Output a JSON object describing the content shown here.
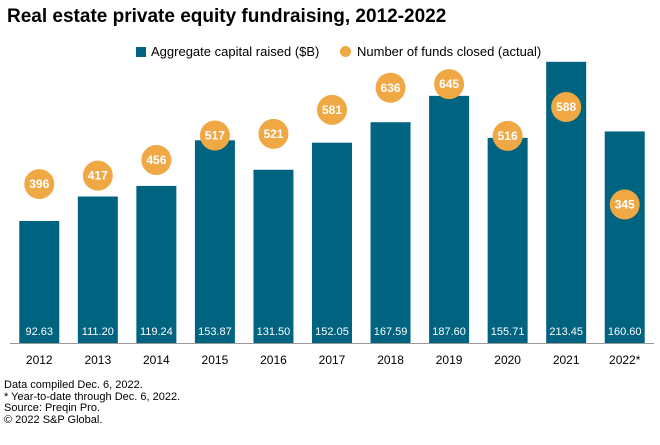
{
  "colors": {
    "bar": "#00637F",
    "dot": "#F0A845",
    "axis": "#999999",
    "bar_label": "#ffffff",
    "dot_label": "#ffffff"
  },
  "legend": {
    "bars_label": "Aggregate capital raised ($B)",
    "dots_label": "Number of funds closed (actual)"
  },
  "notes": [
    "Data compiled Dec. 6, 2022.",
    "* Year-to-date through Dec. 6, 2022.",
    "Source: Preqin Pro.",
    "© 2022 S&P Global."
  ],
  "chart_data": {
    "type": "bar",
    "title": "Real estate private equity fundraising, 2012-2022",
    "categories": [
      "2012",
      "2013",
      "2014",
      "2015",
      "2016",
      "2017",
      "2018",
      "2019",
      "2020",
      "2021",
      "2022*"
    ],
    "series": [
      {
        "name": "Aggregate capital raised ($B)",
        "type": "bar",
        "values": [
          92.63,
          111.2,
          119.24,
          153.87,
          131.5,
          152.05,
          167.59,
          187.6,
          155.71,
          213.45,
          160.6
        ],
        "labels": [
          "92.63",
          "111.20",
          "119.24",
          "153.87",
          "131.50",
          "152.05",
          "167.59",
          "187.60",
          "155.71",
          "213.45",
          "160.60"
        ]
      },
      {
        "name": "Number of funds closed (actual)",
        "type": "scatter",
        "values": [
          396,
          417,
          456,
          517,
          521,
          581,
          636,
          645,
          516,
          588,
          345
        ],
        "labels": [
          "396",
          "417",
          "456",
          "517",
          "521",
          "581",
          "636",
          "645",
          "516",
          "588",
          "345"
        ]
      }
    ],
    "ylim": [
      0,
      230
    ],
    "ylim_secondary": [
      0,
      755
    ],
    "grid": false,
    "legend_position": "top"
  }
}
